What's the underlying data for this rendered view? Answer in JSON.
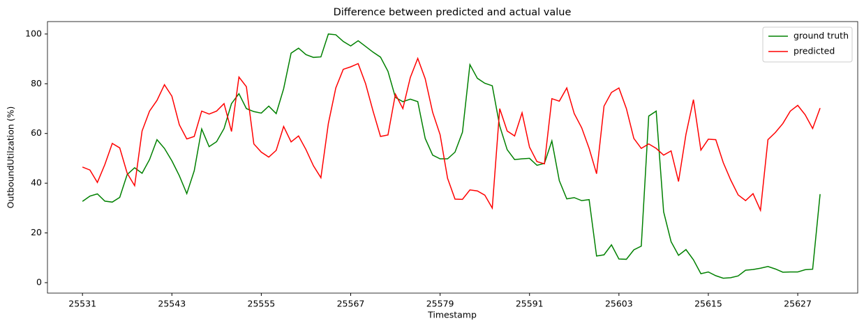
{
  "chart_data": {
    "type": "line",
    "title": "Difference between predicted and actual value",
    "xlabel": "Timestamp",
    "ylabel": "OutboundUtilzation (%)",
    "x": [
      25531,
      25532,
      25533,
      25534,
      25535,
      25536,
      25537,
      25538,
      25539,
      25540,
      25541,
      25542,
      25543,
      25544,
      25545,
      25546,
      25547,
      25548,
      25549,
      25550,
      25551,
      25552,
      25553,
      25554,
      25555,
      25556,
      25557,
      25558,
      25559,
      25560,
      25561,
      25562,
      25563,
      25564,
      25565,
      25566,
      25567,
      25568,
      25569,
      25570,
      25571,
      25572,
      25573,
      25574,
      25575,
      25576,
      25577,
      25578,
      25579,
      25580,
      25581,
      25582,
      25583,
      25584,
      25585,
      25586,
      25587,
      25588,
      25589,
      25590,
      25591,
      25592,
      25593,
      25594,
      25595,
      25596,
      25597,
      25598,
      25599,
      25600,
      25601,
      25602,
      25603,
      25604,
      25605,
      25606,
      25607,
      25608,
      25609,
      25610,
      25611,
      25612,
      25613,
      25614,
      25615,
      25616,
      25617,
      25618,
      25619,
      25620,
      25621,
      25622,
      25623,
      25624,
      25625,
      25626,
      25627,
      25628,
      25629,
      25630
    ],
    "series": [
      {
        "name": "ground truth",
        "color": "#008000",
        "values": [
          32.7,
          34.8,
          35.7,
          32.8,
          32.4,
          34.3,
          43.5,
          46.2,
          44.0,
          49.5,
          57.5,
          54.0,
          49,
          43,
          35.8,
          45,
          61.8,
          54.7,
          56.7,
          62,
          72,
          76,
          70,
          68.8,
          68.2,
          71,
          68,
          78,
          92.3,
          94.3,
          91.7,
          90.6,
          90.8,
          100,
          99.7,
          97,
          95.2,
          97.3,
          95,
          92.7,
          90.7,
          85,
          74.5,
          72.8,
          73.8,
          72.8,
          58,
          51.3,
          49.8,
          49.8,
          52.5,
          60.5,
          87.7,
          82.2,
          80.2,
          79.2,
          63,
          53.5,
          49.5,
          49.8,
          50,
          47.2,
          48,
          57,
          41,
          33.7,
          34.2,
          33,
          33.4,
          10.7,
          11.2,
          15.2,
          9.5,
          9.4,
          13.2,
          14.7,
          67,
          69,
          28.5,
          16.5,
          11,
          13.3,
          9.2,
          3.6,
          4.3,
          2.8,
          1.8,
          2,
          2.7,
          5,
          5.3,
          5.8,
          6.5,
          5.5,
          4.2,
          4.3,
          4.3,
          5.2,
          5.4,
          35.6
        ]
      },
      {
        "name": "predicted",
        "color": "#ff0000",
        "values": [
          46.5,
          45.3,
          40.3,
          47.5,
          56,
          54.2,
          44,
          39,
          61,
          69,
          73.3,
          79.6,
          75,
          63.5,
          57.8,
          58.8,
          69,
          67.8,
          69,
          72,
          60.8,
          82.7,
          78.8,
          55.8,
          52.5,
          50.5,
          53.2,
          62.8,
          56.6,
          59,
          53.5,
          47,
          42.2,
          64,
          78.3,
          85.8,
          86.8,
          88.1,
          80,
          69,
          58.8,
          59.4,
          75.8,
          70,
          82.5,
          90.2,
          82,
          68.5,
          59.5,
          42,
          33.6,
          33.5,
          37.3,
          36.9,
          35.2,
          30,
          70,
          61,
          59,
          68.3,
          54.5,
          48.7,
          47.8,
          74,
          73,
          78.3,
          68,
          62.3,
          54,
          43.8,
          71,
          76.5,
          78.3,
          70,
          58,
          54,
          55.8,
          54,
          51.3,
          53,
          40.7,
          59.7,
          73.6,
          53.3,
          57.7,
          57.5,
          48.3,
          41.3,
          35.3,
          33,
          35.8,
          29.1,
          57.5,
          60.4,
          64,
          69,
          71.3,
          67.5,
          62,
          70.2
        ]
      }
    ],
    "xlim": [
      25526.3,
      25635.05
    ],
    "ylim": [
      -4.2,
      105
    ],
    "xticks": [
      25531,
      25543,
      25555,
      25567,
      25579,
      25591,
      25603,
      25615,
      25627
    ],
    "yticks": [
      0,
      20,
      40,
      60,
      80,
      100
    ],
    "legend": "upper right"
  }
}
